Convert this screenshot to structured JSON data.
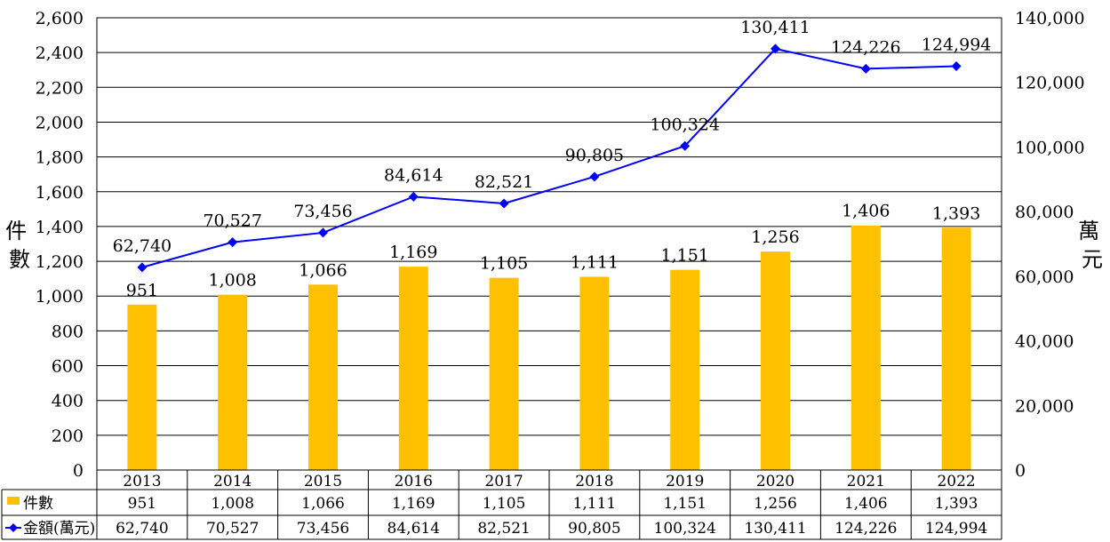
{
  "chart_data": {
    "type": "bar",
    "categories": [
      "2013",
      "2014",
      "2015",
      "2016",
      "2017",
      "2018",
      "2019",
      "2020",
      "2021",
      "2022"
    ],
    "series": [
      {
        "name": "件數",
        "type": "bar",
        "axis": "left",
        "color": "#FFC000",
        "values": [
          951,
          1008,
          1066,
          1169,
          1105,
          1111,
          1151,
          1256,
          1406,
          1393
        ],
        "labels": [
          "951",
          "1,008",
          "1,066",
          "1,169",
          "1,105",
          "1,111",
          "1,151",
          "1,256",
          "1,406",
          "1,393"
        ]
      },
      {
        "name": "金額(萬元)",
        "type": "line",
        "axis": "right",
        "color": "#0000FF",
        "marker": "diamond",
        "values": [
          62740,
          70527,
          73456,
          84614,
          82521,
          90805,
          100324,
          130411,
          124226,
          124994
        ],
        "labels": [
          "62,740",
          "70,527",
          "73,456",
          "84,614",
          "82,521",
          "90,805",
          "100,324",
          "130,411",
          "124,226",
          "124,994"
        ]
      }
    ],
    "y_left": {
      "label": "件數",
      "ylim": [
        0,
        2600
      ],
      "ticks": [
        0,
        200,
        400,
        600,
        800,
        1000,
        1200,
        1400,
        1600,
        1800,
        2000,
        2200,
        2400,
        2600
      ],
      "tick_labels": [
        "0",
        "200",
        "400",
        "600",
        "800",
        "1,000",
        "1,200",
        "1,400",
        "1,600",
        "1,800",
        "2,000",
        "2,200",
        "2,400",
        "2,600"
      ]
    },
    "y_right": {
      "label": "萬元",
      "ylim": [
        0,
        140000
      ],
      "ticks": [
        0,
        20000,
        40000,
        60000,
        80000,
        100000,
        120000,
        140000
      ],
      "tick_labels": [
        "0",
        "20,000",
        "40,000",
        "60,000",
        "80,000",
        "100,000",
        "120,000",
        "140,000"
      ]
    },
    "grid": true,
    "legend": "data-table",
    "data_table": true
  }
}
